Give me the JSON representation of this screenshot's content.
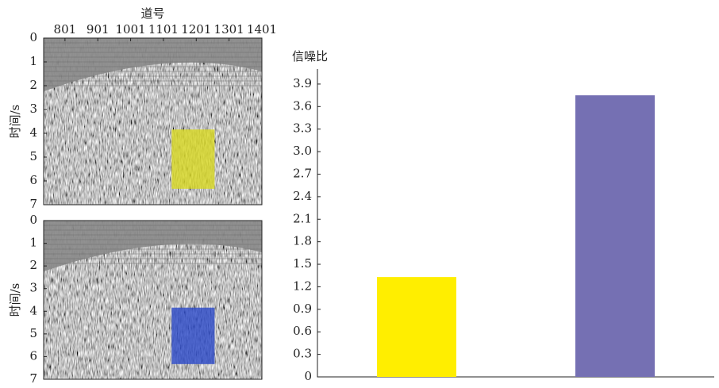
{
  "chart_data": [
    {
      "type": "seismic",
      "title": "道号",
      "y_label": "时间/s",
      "xlim": [
        736,
        1401
      ],
      "xticks": [
        801,
        901,
        1001,
        1101,
        1201,
        1301,
        1401
      ],
      "ylim": [
        0,
        7
      ],
      "yticks": [
        0,
        1,
        2,
        3,
        4,
        5,
        6,
        7
      ],
      "y_inverted": true,
      "highlight": {
        "x": [
          1126,
          1257
        ],
        "y": [
          3.84,
          6.33
        ],
        "color": "#d8d820"
      }
    },
    {
      "type": "seismic",
      "y_label": "时间/s",
      "xlim": [
        736,
        1401
      ],
      "ylim": [
        0,
        7
      ],
      "yticks": [
        0,
        1,
        2,
        3,
        4,
        5,
        6,
        7
      ],
      "y_inverted": true,
      "highlight": {
        "x": [
          1126,
          1257
        ],
        "y": [
          3.84,
          6.33
        ],
        "color": "#2a48c8"
      }
    },
    {
      "type": "bar",
      "y_label": "信噪比",
      "categories": [
        null,
        null
      ],
      "values": [
        1.33,
        3.75
      ],
      "colors": [
        "#ffee00",
        "#7570b3"
      ],
      "ylim": [
        0,
        4.1
      ],
      "yticks": [
        0,
        0.3,
        0.6,
        0.9,
        1.2,
        1.5,
        1.8,
        2.1,
        2.4,
        2.7,
        {
          "value": 3,
          "label": "3.0"
        },
        3.3,
        3.6,
        3.9
      ]
    }
  ]
}
